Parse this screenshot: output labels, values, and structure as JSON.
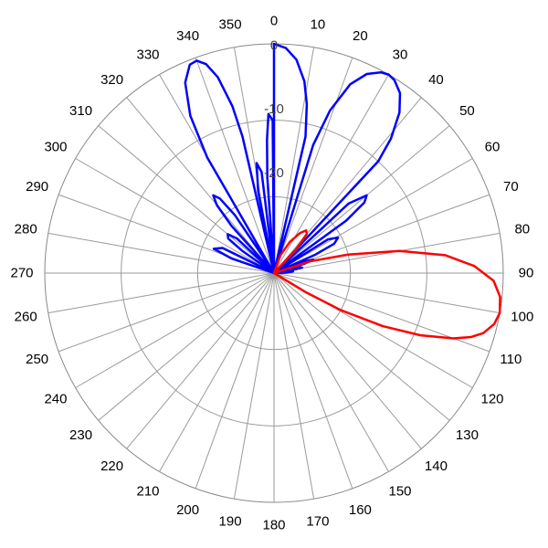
{
  "chart_data": {
    "type": "polar-line",
    "title": "",
    "angle_unit": "degrees",
    "angle_direction": "clockwise",
    "zero_at": "top",
    "angular_ticks": [
      0,
      10,
      20,
      30,
      40,
      50,
      60,
      70,
      80,
      90,
      100,
      110,
      120,
      130,
      140,
      150,
      160,
      170,
      180,
      190,
      200,
      210,
      220,
      230,
      240,
      250,
      260,
      270,
      280,
      290,
      300,
      310,
      320,
      330,
      340,
      350
    ],
    "radial_ticks": [
      0,
      -10,
      -20
    ],
    "radial_range": [
      -36,
      0
    ],
    "grid": true,
    "series": [
      {
        "color": "#0000ff",
        "points": [
          [
            0,
            0
          ],
          [
            3,
            -0.6
          ],
          [
            6,
            -2.3
          ],
          [
            9,
            -5.5
          ],
          [
            11,
            -9
          ],
          [
            13,
            -14
          ],
          [
            15,
            -36
          ],
          [
            17,
            -15
          ],
          [
            19,
            -9
          ],
          [
            22,
            -4
          ],
          [
            25,
            -1.5
          ],
          [
            28,
            -0.3
          ],
          [
            30,
            0
          ],
          [
            32,
            -0.3
          ],
          [
            35,
            -1.5
          ],
          [
            38,
            -4
          ],
          [
            41,
            -8
          ],
          [
            43,
            -12
          ],
          [
            45,
            -36
          ],
          [
            47,
            -20
          ],
          [
            50,
            -17
          ],
          [
            52,
            -18
          ],
          [
            54,
            -22
          ],
          [
            56,
            -36
          ],
          [
            58,
            -26
          ],
          [
            61,
            -24.5
          ],
          [
            64,
            -25.5
          ],
          [
            66,
            -29
          ],
          [
            67,
            -36
          ],
          [
            69,
            -31
          ],
          [
            71,
            -29.5
          ],
          [
            73,
            -31
          ],
          [
            75,
            -36
          ],
          [
            77,
            -32
          ],
          [
            79,
            -31.5
          ],
          [
            81,
            -33.5
          ],
          [
            83,
            -36
          ],
          [
            85,
            -33
          ],
          [
            88,
            -34
          ],
          [
            92,
            -36
          ],
          [
            285,
            -36
          ],
          [
            289,
            -29
          ],
          [
            292,
            -25.8
          ],
          [
            296,
            -27
          ],
          [
            300,
            -36
          ],
          [
            305,
            -30
          ],
          [
            307,
            -27
          ],
          [
            310,
            -26.5
          ],
          [
            313,
            -28
          ],
          [
            316,
            -36
          ],
          [
            318,
            -26
          ],
          [
            320,
            -22
          ],
          [
            322,
            -20.5
          ],
          [
            324,
            -21.5
          ],
          [
            326,
            -25
          ],
          [
            328,
            -36
          ],
          [
            330,
            -15
          ],
          [
            332,
            -8
          ],
          [
            335,
            -3
          ],
          [
            338,
            -0.7
          ],
          [
            340,
            -0.5
          ],
          [
            342,
            -1.5
          ],
          [
            344,
            -4
          ],
          [
            346,
            -9
          ],
          [
            347,
            -14
          ],
          [
            348,
            -36
          ],
          [
            349,
            -23
          ],
          [
            351,
            -18.5
          ],
          [
            353,
            -20
          ],
          [
            355,
            -36
          ],
          [
            356,
            -21
          ],
          [
            357,
            -15
          ],
          [
            358,
            -11
          ],
          [
            359.5,
            -12
          ],
          [
            359.9,
            -36
          ]
        ]
      },
      {
        "color": "#ff0000",
        "points": [
          [
            0,
            -36
          ],
          [
            10,
            -36
          ],
          [
            20,
            -33
          ],
          [
            27,
            -30.5
          ],
          [
            33,
            -28.5
          ],
          [
            37,
            -27.6
          ],
          [
            40,
            -28
          ],
          [
            43,
            -31
          ],
          [
            47,
            -36
          ],
          [
            62,
            -36
          ],
          [
            72,
            -30
          ],
          [
            76,
            -24
          ],
          [
            80,
            -16
          ],
          [
            84,
            -9
          ],
          [
            88,
            -4.5
          ],
          [
            92,
            -1.5
          ],
          [
            96,
            -0.3
          ],
          [
            100,
            0
          ],
          [
            103,
            -0.5
          ],
          [
            106,
            -1.8
          ],
          [
            108,
            -3.5
          ],
          [
            110,
            -6
          ],
          [
            113,
            -11
          ],
          [
            116,
            -17
          ],
          [
            119,
            -24
          ],
          [
            121,
            -30
          ],
          [
            123,
            -36
          ],
          [
            150,
            -36
          ],
          [
            359.9,
            -36
          ]
        ]
      }
    ]
  }
}
